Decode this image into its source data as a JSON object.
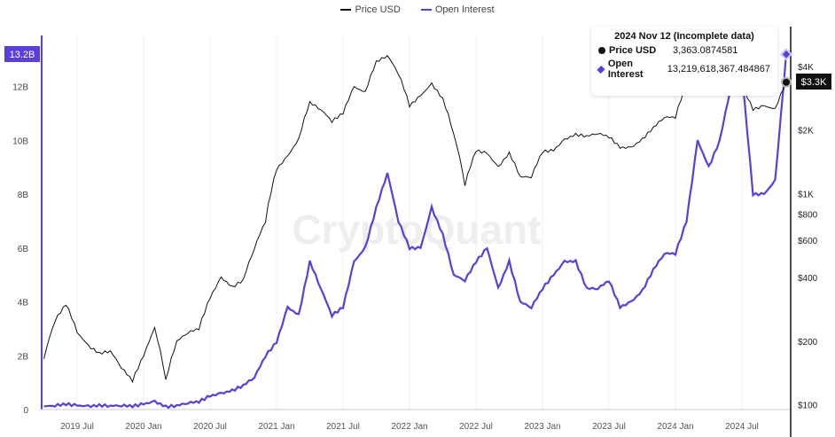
{
  "legend": {
    "price_label": "Price USD",
    "oi_label": "Open Interest"
  },
  "watermark": "CryptoQuant",
  "tooltip": {
    "title": "2024 Nov 12 (Incomplete data)",
    "price_label": "Price USD",
    "price_value": "3,363.0874581",
    "oi_label": "Open Interest",
    "oi_value": "13,219,618,367.484867"
  },
  "badges": {
    "left": "13.2B",
    "right": "$3.3K"
  },
  "colors": {
    "price": "#111111",
    "oi": "#5b3fd6"
  },
  "chart_data": {
    "type": "line",
    "title": "",
    "x_ticks": [
      "2019 Jul",
      "2020 Jan",
      "2020 Jul",
      "2021 Jan",
      "2021 Jul",
      "2022 Jan",
      "2022 Jul",
      "2023 Jan",
      "2023 Jul",
      "2024 Jan",
      "2024 Jul"
    ],
    "left_axis": {
      "label": "Open Interest",
      "ticks": [
        "0",
        "2B",
        "4B",
        "6B",
        "8B",
        "10B",
        "12B"
      ],
      "tick_values": [
        0,
        2,
        4,
        6,
        8,
        10,
        12
      ],
      "range": [
        0,
        13.9
      ],
      "unit": "B USD"
    },
    "right_axis": {
      "label": "Price USD",
      "scale": "log",
      "ticks": [
        "$100",
        "$200",
        "$400",
        "$600",
        "$800",
        "$1K",
        "$2K",
        "$4K"
      ],
      "tick_values": [
        100,
        200,
        400,
        600,
        800,
        1000,
        2000,
        4000
      ],
      "range": [
        95,
        5600
      ]
    },
    "x_start": "2019-04",
    "x_interval": "month",
    "series": [
      {
        "name": "Price USD",
        "axis": "right",
        "values": [
          165,
          250,
          300,
          220,
          190,
          175,
          180,
          150,
          130,
          170,
          230,
          130,
          200,
          220,
          230,
          320,
          400,
          360,
          390,
          550,
          740,
          1300,
          1500,
          1800,
          2700,
          2500,
          2200,
          2400,
          3200,
          3000,
          4200,
          4500,
          3700,
          2600,
          2900,
          3300,
          2800,
          1900,
          1100,
          1600,
          1550,
          1330,
          1550,
          1200,
          1200,
          1580,
          1600,
          1800,
          1900,
          1870,
          1930,
          1860,
          1650,
          1650,
          1800,
          2050,
          2300,
          2300,
          3300,
          3500,
          3000,
          3700,
          3400,
          3200,
          2500,
          2600,
          2500,
          3363
        ]
      },
      {
        "name": "Open Interest",
        "axis": "left",
        "values": [
          0.12,
          0.15,
          0.2,
          0.15,
          0.12,
          0.15,
          0.14,
          0.15,
          0.13,
          0.2,
          0.3,
          0.1,
          0.15,
          0.25,
          0.3,
          0.5,
          0.6,
          0.7,
          0.9,
          1.2,
          2.0,
          2.5,
          3.8,
          3.5,
          5.5,
          4.5,
          3.5,
          3.8,
          5.5,
          6.0,
          7.5,
          8.8,
          7.0,
          6.0,
          6.0,
          7.5,
          6.5,
          5.0,
          4.8,
          5.5,
          6.0,
          4.5,
          5.5,
          4.0,
          3.8,
          4.5,
          5.0,
          5.5,
          5.5,
          4.5,
          4.5,
          4.8,
          3.8,
          4.0,
          4.4,
          5.2,
          5.8,
          5.8,
          7.0,
          10.0,
          9.0,
          10.0,
          12.0,
          12.5,
          8.0,
          8.0,
          8.5,
          13.2
        ]
      }
    ]
  }
}
